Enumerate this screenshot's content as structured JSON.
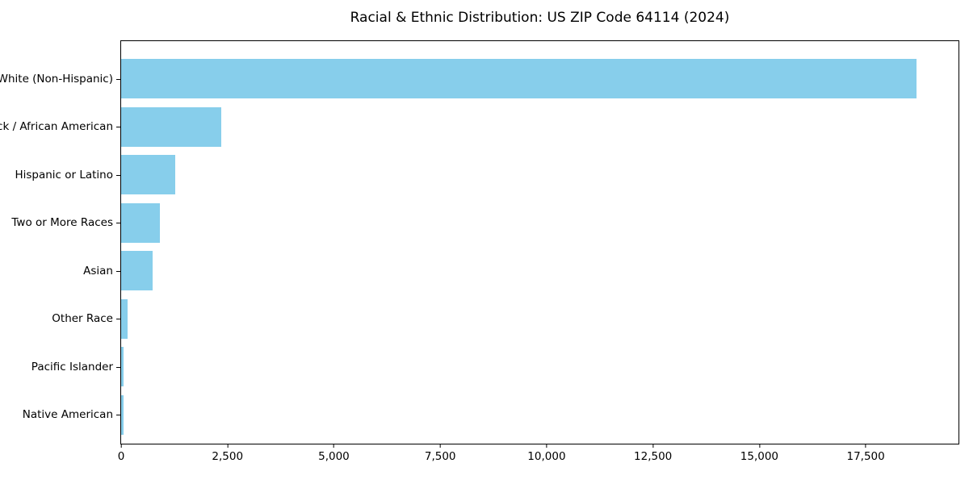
{
  "chart_data": {
    "type": "bar",
    "orientation": "horizontal",
    "title": "Racial & Ethnic Distribution: US ZIP Code 64114 (2024)",
    "categories": [
      "White (Non-Hispanic)",
      "Black / African American",
      "Hispanic or Latino",
      "Two or More Races",
      "Asian",
      "Other Race",
      "Pacific Islander",
      "Native American"
    ],
    "values": [
      18700,
      2350,
      1270,
      910,
      740,
      150,
      60,
      50
    ],
    "xlabel": "",
    "ylabel": "",
    "xlim": [
      0,
      19680
    ],
    "x_ticks": [
      0,
      2500,
      5000,
      7500,
      10000,
      12500,
      15000,
      17500
    ],
    "x_tick_labels": [
      "0",
      "2,500",
      "5,000",
      "7,500",
      "10,000",
      "12,500",
      "15,000",
      "17,500"
    ],
    "bar_color": "#87CEEB",
    "grid": false,
    "legend": null,
    "sort_order": "descending"
  }
}
